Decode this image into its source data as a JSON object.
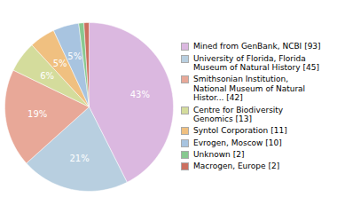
{
  "chart_data": {
    "type": "pie",
    "categories": [
      "Mined from GenBank, NCBI [93]",
      "University of Florida, Florida\nMuseum of Natural History [45]",
      "Smithsonian Institution,\nNational Museum of Natural\nHistor... [42]",
      "Centre for Biodiversity\nGenomics [13]",
      "Syntol Corporation [11]",
      "Evrogen, Moscow [10]",
      "Unknown [2]",
      "Macrogen, Europe [2]"
    ],
    "values": [
      43,
      21,
      19,
      6,
      5,
      5,
      1,
      1
    ],
    "value_labels": [
      "43%",
      "21%",
      "19%",
      "6%",
      "5%",
      "5%",
      null,
      null
    ],
    "colors": [
      "#dbb8e0",
      "#b8cfe0",
      "#e8a898",
      "#d4dc9c",
      "#f0c080",
      "#a8c4e0",
      "#88c890",
      "#cc7060"
    ],
    "data_labels": true,
    "legend": "right"
  }
}
